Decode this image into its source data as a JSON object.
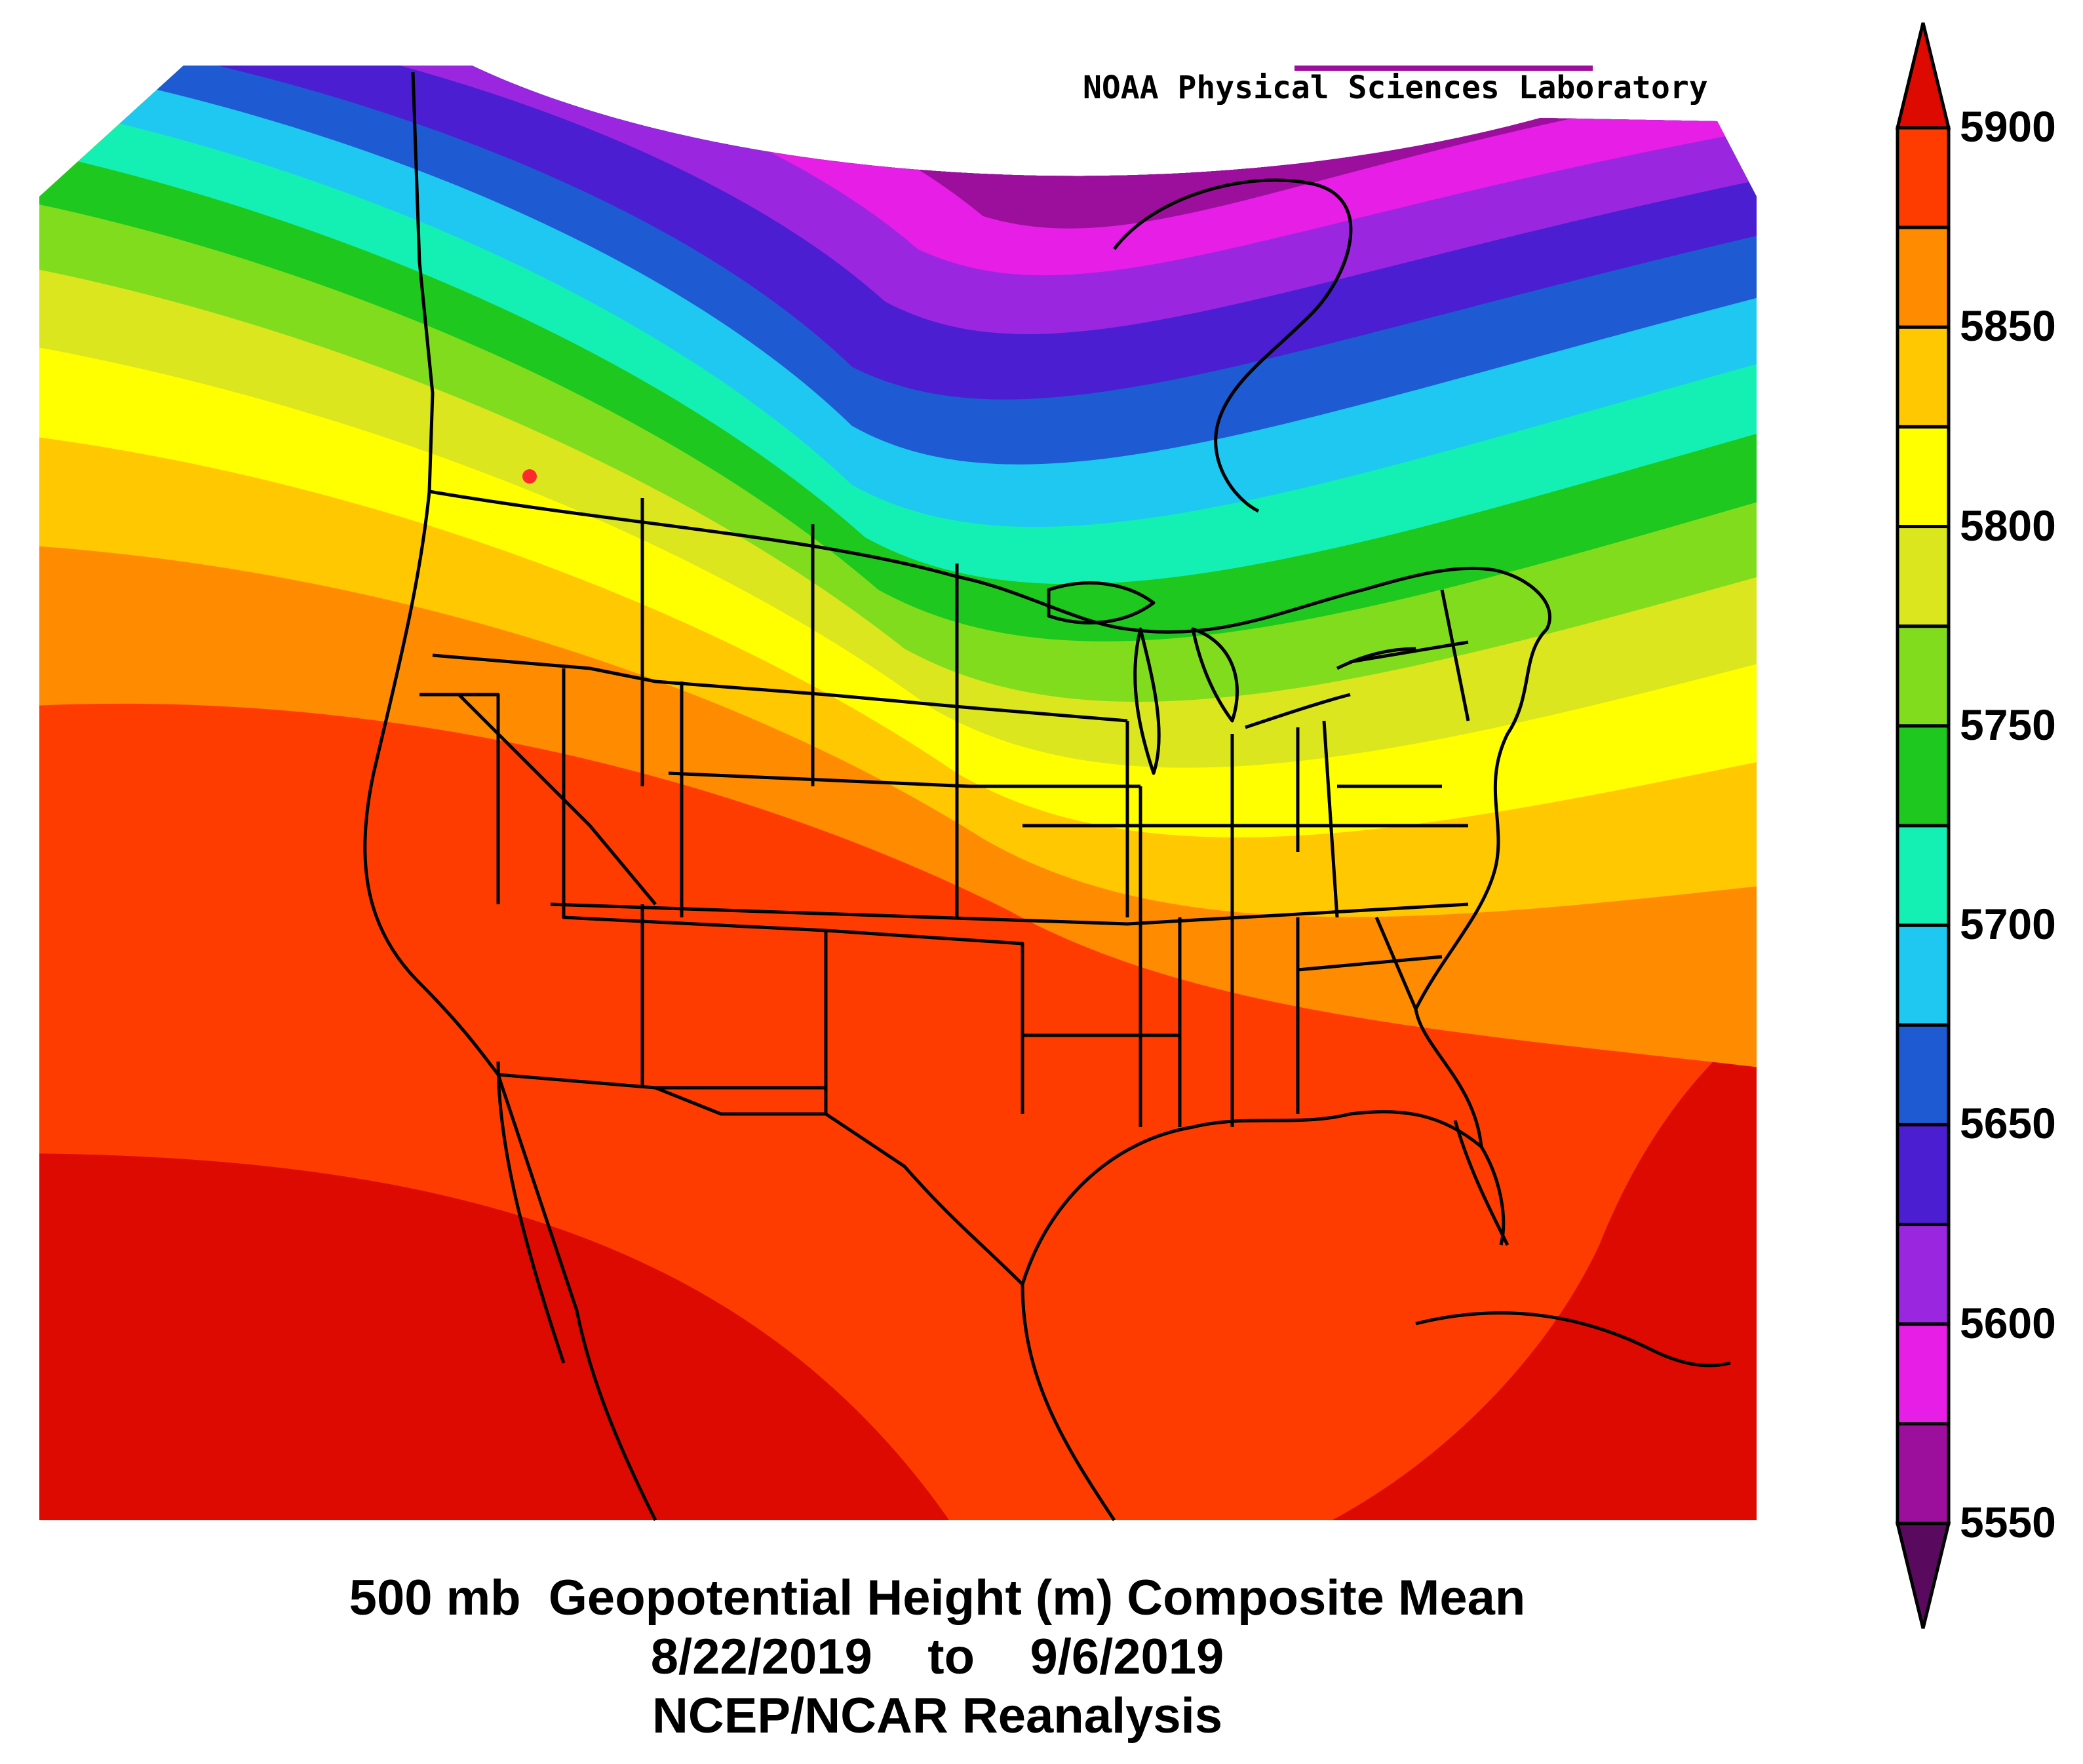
{
  "credit": "NOAA Physical Sciences Laboratory",
  "caption": {
    "line1": "500 mb  Geopotential Height (m) Composite Mean",
    "line2": "8/22/2019    to    9/6/2019",
    "line3": "NCEP/NCAR Reanalysis"
  },
  "colorbar": {
    "unit": "m",
    "labels": [
      "5900",
      "5850",
      "5800",
      "5750",
      "5700",
      "5650",
      "5600",
      "5550"
    ],
    "levels": [
      5550,
      5575,
      5600,
      5625,
      5650,
      5675,
      5700,
      5725,
      5750,
      5775,
      5800,
      5825,
      5850,
      5875,
      5900
    ],
    "colors": [
      "#5a0a5e",
      "#9c0f9c",
      "#e61ee6",
      "#9b26e0",
      "#4b1ed2",
      "#1e5ad2",
      "#1ec8f0",
      "#14f0b4",
      "#1ec81e",
      "#82dc1e",
      "#dce61e",
      "#ffff00",
      "#ffc800",
      "#ff8c00",
      "#ff3c00",
      "#dc0a00"
    ]
  },
  "map": {
    "region": "North America",
    "field": "500 mb geopotential height",
    "colors": {
      "boundary": "#000000",
      "marker": "#ff2a2a"
    }
  }
}
